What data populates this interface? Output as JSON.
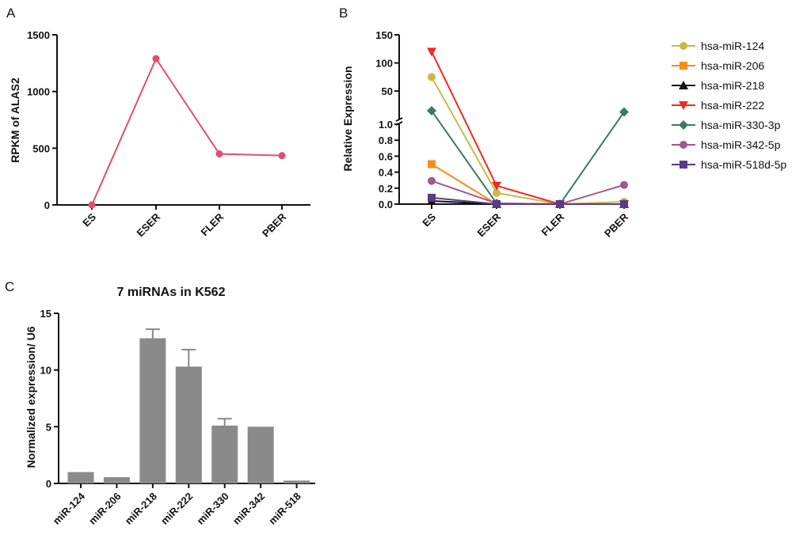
{
  "chart_data": [
    {
      "panel": "A",
      "type": "line",
      "categories": [
        "ES",
        "ESER",
        "FLER",
        "PBER"
      ],
      "values": [
        0,
        1290,
        450,
        435
      ],
      "ylabel": "RPKM of ALAS2",
      "ylim": [
        0,
        1500
      ],
      "yticks": [
        "0",
        "500",
        "1000",
        "1500"
      ],
      "color": "#e0506a"
    },
    {
      "panel": "B",
      "type": "line",
      "categories": [
        "ES",
        "ESER",
        "FLER",
        "PBER"
      ],
      "ylabel": "Relative Expression",
      "yticks_lower": [
        "0.0",
        "0.2",
        "0.4",
        "0.6",
        "0.8",
        "1.0"
      ],
      "yticks_upper": [
        "50",
        "100",
        "150"
      ],
      "ylim_lower": [
        0,
        1.0
      ],
      "ylim_upper": [
        1.0,
        150
      ],
      "series": [
        {
          "name": "hsa-miR-124",
          "values": [
            75,
            0.14,
            0.0,
            0.03
          ],
          "color": "#c8b94a",
          "marker": "circle"
        },
        {
          "name": "hsa-miR-206",
          "values": [
            0.5,
            0.0,
            0.0,
            0.0
          ],
          "color": "#f58c1e",
          "marker": "square"
        },
        {
          "name": "hsa-miR-218",
          "values": [
            0.04,
            0.0,
            0.0,
            0.0
          ],
          "color": "#111111",
          "marker": "triangle-up"
        },
        {
          "name": "hsa-miR-222",
          "values": [
            120,
            0.23,
            0.0,
            0.0
          ],
          "color": "#ee2a24",
          "marker": "triangle-down"
        },
        {
          "name": "hsa-miR-330-3p",
          "values": [
            15,
            0.01,
            0.0,
            13
          ],
          "color": "#3a7a5e",
          "marker": "diamond"
        },
        {
          "name": "hsa-miR-342-5p",
          "values": [
            0.29,
            0.01,
            0.0,
            0.24
          ],
          "color": "#a05a8c",
          "marker": "circle"
        },
        {
          "name": "hsa-miR-518d-5p",
          "values": [
            0.08,
            0.0,
            0.0,
            0.0
          ],
          "color": "#5a3b8a",
          "marker": "square"
        }
      ]
    },
    {
      "panel": "C",
      "type": "bar",
      "title": "7 miRNAs in K562",
      "categories": [
        "miR-124",
        "miR-206",
        "miR-218",
        "miR-222",
        "miR-330",
        "miR-342",
        "miR-518"
      ],
      "values": [
        1.0,
        0.55,
        12.8,
        10.3,
        5.1,
        5.0,
        0.25
      ],
      "errors": [
        0.05,
        0.05,
        0.8,
        1.5,
        0.6,
        0.05,
        0.05
      ],
      "ylabel": "Normalized expression/ U6",
      "ylim": [
        0,
        15
      ],
      "yticks": [
        "0",
        "5",
        "10",
        "15"
      ],
      "color": "#8a8a8a"
    }
  ],
  "labels": {
    "a": "A",
    "b": "B",
    "c": "C"
  }
}
